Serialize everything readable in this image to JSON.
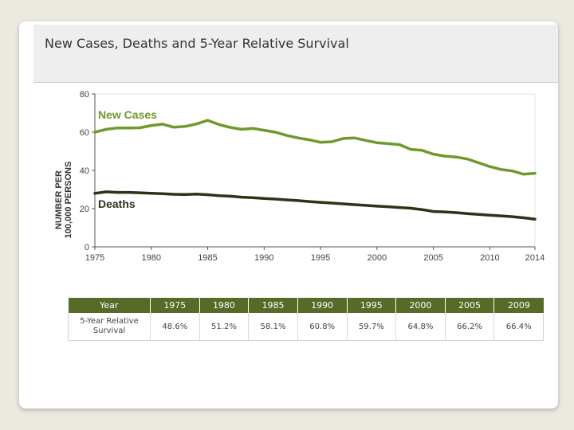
{
  "header": {
    "title": "New Cases, Deaths and 5-Year Relative Survival"
  },
  "colors": {
    "new_cases": "#6f9a2b",
    "deaths": "#2b3417",
    "table_header": "#576a28"
  },
  "chart_data": {
    "type": "line",
    "ylabel_line1": "NUMBER PER",
    "ylabel_line2": "100,000 PERSONS",
    "xlim": [
      1975,
      2014
    ],
    "ylim": [
      0,
      80
    ],
    "x_ticks": [
      1975,
      1980,
      1985,
      1990,
      1995,
      2000,
      2005,
      2010,
      2014
    ],
    "y_ticks": [
      0,
      20,
      40,
      60,
      80
    ],
    "grid": false,
    "series": [
      {
        "name": "New Cases",
        "x": [
          1975,
          1976,
          1977,
          1978,
          1979,
          1980,
          1981,
          1982,
          1983,
          1984,
          1985,
          1986,
          1987,
          1988,
          1989,
          1990,
          1991,
          1992,
          1993,
          1994,
          1995,
          1996,
          1997,
          1998,
          1999,
          2000,
          2001,
          2002,
          2003,
          2004,
          2005,
          2006,
          2007,
          2008,
          2009,
          2010,
          2011,
          2012,
          2013,
          2014
        ],
        "y": [
          60,
          61.5,
          62.2,
          62.2,
          62.3,
          63.5,
          64.2,
          62.6,
          63,
          64.3,
          66.2,
          64,
          62.5,
          61.5,
          62,
          61,
          60,
          58.3,
          57,
          56,
          54.7,
          55,
          56.7,
          57,
          55.7,
          54.5,
          54,
          53.5,
          51,
          50.5,
          48.5,
          47.5,
          47,
          46,
          44,
          42,
          40.5,
          39.7,
          38,
          38.5
        ]
      },
      {
        "name": "Deaths",
        "x": [
          1975,
          1976,
          1977,
          1978,
          1979,
          1980,
          1981,
          1982,
          1983,
          1984,
          1985,
          1986,
          1987,
          1988,
          1989,
          1990,
          1991,
          1992,
          1993,
          1994,
          1995,
          1996,
          1997,
          1998,
          1999,
          2000,
          2001,
          2002,
          2003,
          2004,
          2005,
          2006,
          2007,
          2008,
          2009,
          2010,
          2011,
          2012,
          2013,
          2014
        ],
        "y": [
          28,
          28.8,
          28.5,
          28.5,
          28.3,
          28,
          27.8,
          27.5,
          27.4,
          27.6,
          27.3,
          26.8,
          26.5,
          26,
          25.7,
          25.3,
          25,
          24.6,
          24.2,
          23.7,
          23.3,
          22.9,
          22.5,
          22.1,
          21.7,
          21.3,
          21,
          20.6,
          20.2,
          19.5,
          18.5,
          18.3,
          17.9,
          17.4,
          17,
          16.6,
          16.2,
          15.8,
          15.2,
          14.5
        ]
      }
    ]
  },
  "table": {
    "headers": [
      "Year",
      "1975",
      "1980",
      "1985",
      "1990",
      "1995",
      "2000",
      "2005",
      "2009"
    ],
    "row_label_line1": "5-Year Relative",
    "row_label_line2": "Survival",
    "values": [
      "48.6%",
      "51.2%",
      "58.1%",
      "60.8%",
      "59.7%",
      "64.8%",
      "66.2%",
      "66.4%"
    ]
  }
}
